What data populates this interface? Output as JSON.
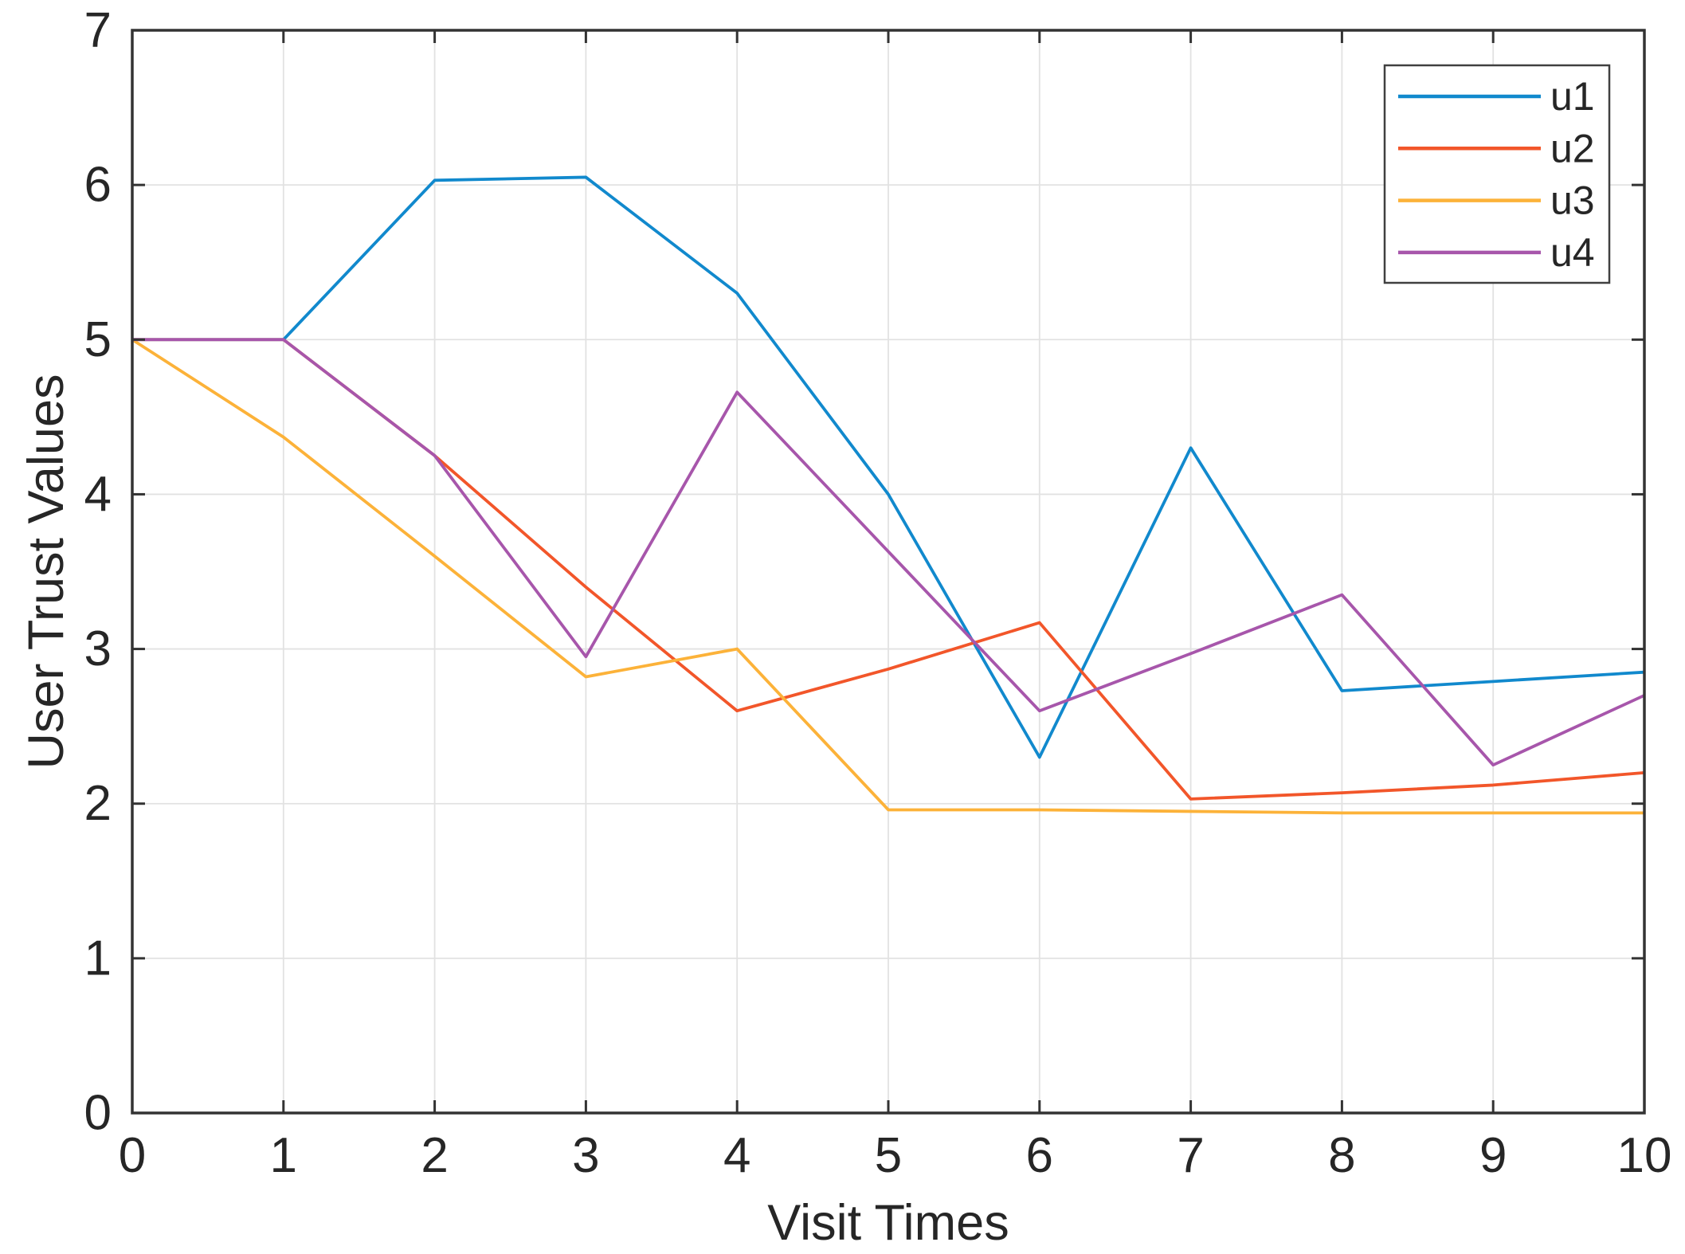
{
  "chart_data": {
    "type": "line",
    "title": "",
    "xlabel": "Visit Times",
    "ylabel": "User Trust Values",
    "xlim": [
      0,
      10
    ],
    "ylim": [
      0,
      7
    ],
    "xticks": [
      0,
      1,
      2,
      3,
      4,
      5,
      6,
      7,
      8,
      9,
      10
    ],
    "yticks": [
      0,
      1,
      2,
      3,
      4,
      5,
      6,
      7
    ],
    "xtick_labels": [
      "0",
      "1",
      "2",
      "3",
      "4",
      "5",
      "6",
      "7",
      "8",
      "9",
      "10"
    ],
    "ytick_labels": [
      "0",
      "1",
      "2",
      "3",
      "4",
      "5",
      "6",
      "7"
    ],
    "grid": true,
    "legend_position": "top-right",
    "x": [
      0,
      1,
      2,
      3,
      4,
      5,
      6,
      7,
      8,
      9,
      10
    ],
    "series": [
      {
        "name": "u1",
        "color": "#1189cd",
        "values": [
          5.0,
          5.0,
          6.03,
          6.05,
          5.3,
          4.0,
          2.3,
          4.3,
          2.73,
          2.79,
          2.85
        ]
      },
      {
        "name": "u2",
        "color": "#f2562a",
        "values": [
          5.0,
          5.0,
          4.25,
          3.4,
          2.6,
          2.87,
          3.17,
          2.03,
          2.07,
          2.12,
          2.2
        ]
      },
      {
        "name": "u3",
        "color": "#fcb239",
        "values": [
          5.0,
          4.37,
          3.6,
          2.82,
          3.0,
          1.96,
          1.96,
          1.95,
          1.94,
          1.94,
          1.94
        ]
      },
      {
        "name": "u4",
        "color": "#a756ab",
        "values": [
          5.0,
          5.0,
          4.25,
          2.95,
          4.66,
          3.63,
          2.6,
          2.97,
          3.35,
          2.25,
          2.7
        ]
      }
    ],
    "style": {
      "axis_color": "#333333",
      "grid_color": "#e2e2e2",
      "legend_border_color": "#404040",
      "background": "#ffffff"
    }
  }
}
